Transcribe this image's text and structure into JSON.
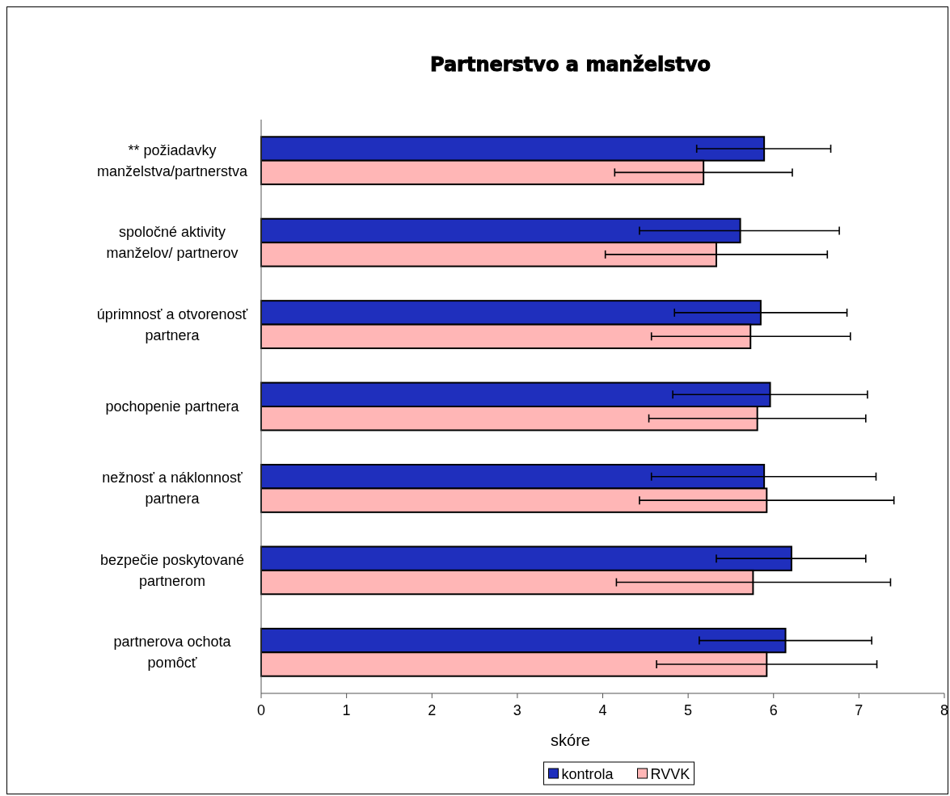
{
  "chart_data": {
    "type": "bar",
    "orientation": "horizontal",
    "title": "Partnerstvo a manželstvo",
    "xlabel": "skóre",
    "categories": [
      "** požiadavky manželstva/partnerstva",
      "spoločné aktivity manželov/ partnerov",
      "úprimnosť a otvorenosť partnera",
      "pochopenie partnera",
      "nežnosť a náklonnosť partnera",
      "bezpečie poskytované partnerom",
      "partnerova ochota pomôcť"
    ],
    "series": [
      {
        "name": "kontrola",
        "color": "#1f2fbd",
        "values": [
          5.89,
          5.61,
          5.85,
          5.96,
          5.89,
          6.21,
          6.14
        ],
        "errors": [
          [
            5.1,
            6.67
          ],
          [
            4.43,
            6.77
          ],
          [
            4.84,
            6.86
          ],
          [
            4.82,
            7.1
          ],
          [
            4.57,
            7.2
          ],
          [
            5.33,
            7.08
          ],
          [
            5.13,
            7.15
          ]
        ]
      },
      {
        "name": "RVVK",
        "color": "#ffb6b6",
        "values": [
          5.18,
          5.33,
          5.73,
          5.81,
          5.92,
          5.76,
          5.92
        ],
        "errors": [
          [
            4.14,
            6.22
          ],
          [
            4.03,
            6.63
          ],
          [
            4.57,
            6.9
          ],
          [
            4.54,
            7.08
          ],
          [
            4.43,
            7.41
          ],
          [
            4.16,
            7.37
          ],
          [
            4.63,
            7.21
          ]
        ]
      }
    ],
    "xlim": [
      0,
      8
    ],
    "xticks": [
      0,
      1,
      2,
      3,
      4,
      5,
      6,
      7,
      8
    ],
    "grid": false,
    "legend": "bottom"
  }
}
